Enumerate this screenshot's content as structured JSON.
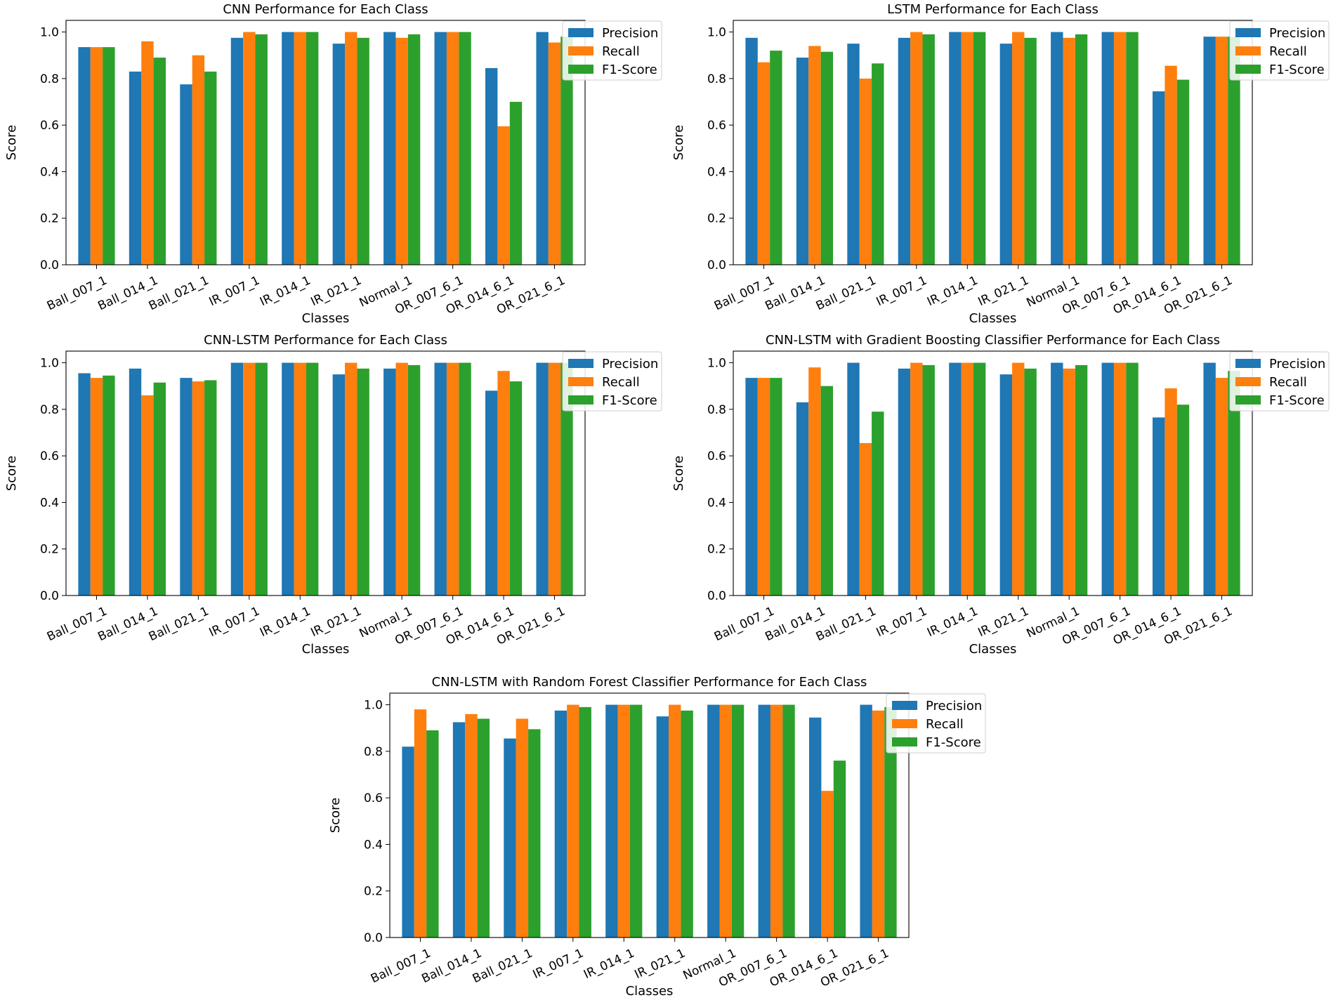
{
  "chart_data": [
    {
      "type": "bar",
      "title": "CNN Performance for Each Class",
      "xlabel": "Classes",
      "ylabel": "Score",
      "ylim": [
        0,
        1.05
      ],
      "yticks": [
        "0.0",
        "0.2",
        "0.4",
        "0.6",
        "0.8",
        "1.0"
      ],
      "legend_position": "top-right",
      "categories": [
        "Ball_007_1",
        "Ball_014_1",
        "Ball_021_1",
        "IR_007_1",
        "IR_014_1",
        "IR_021_1",
        "Normal_1",
        "OR_007_6_1",
        "OR_014_6_1",
        "OR_021_6_1"
      ],
      "series": [
        {
          "name": "Precision",
          "color": "#1f77b4",
          "values": [
            0.935,
            0.83,
            0.775,
            0.975,
            1.0,
            0.95,
            1.0,
            1.0,
            0.845,
            1.0
          ]
        },
        {
          "name": "Recall",
          "color": "#ff7f0e",
          "values": [
            0.935,
            0.96,
            0.9,
            1.0,
            1.0,
            1.0,
            0.975,
            1.0,
            0.595,
            0.955
          ]
        },
        {
          "name": "F1-Score",
          "color": "#2ca02c",
          "values": [
            0.935,
            0.89,
            0.83,
            0.99,
            1.0,
            0.975,
            0.99,
            1.0,
            0.7,
            0.98
          ]
        }
      ]
    },
    {
      "type": "bar",
      "title": "LSTM Performance for Each Class",
      "xlabel": "Classes",
      "ylabel": "Score",
      "ylim": [
        0,
        1.05
      ],
      "yticks": [
        "0.0",
        "0.2",
        "0.4",
        "0.6",
        "0.8",
        "1.0"
      ],
      "legend_position": "top-right",
      "categories": [
        "Ball_007_1",
        "Ball_014_1",
        "Ball_021_1",
        "IR_007_1",
        "IR_014_1",
        "IR_021_1",
        "Normal_1",
        "OR_007_6_1",
        "OR_014_6_1",
        "OR_021_6_1"
      ],
      "series": [
        {
          "name": "Precision",
          "color": "#1f77b4",
          "values": [
            0.975,
            0.89,
            0.95,
            0.975,
            1.0,
            0.95,
            1.0,
            1.0,
            0.745,
            0.98
          ]
        },
        {
          "name": "Recall",
          "color": "#ff7f0e",
          "values": [
            0.87,
            0.94,
            0.8,
            1.0,
            1.0,
            1.0,
            0.975,
            1.0,
            0.855,
            0.98
          ]
        },
        {
          "name": "F1-Score",
          "color": "#2ca02c",
          "values": [
            0.92,
            0.915,
            0.865,
            0.99,
            1.0,
            0.975,
            0.99,
            1.0,
            0.795,
            0.98
          ]
        }
      ]
    },
    {
      "type": "bar",
      "title": "CNN-LSTM Performance for Each Class",
      "xlabel": "Classes",
      "ylabel": "Score",
      "ylim": [
        0,
        1.05
      ],
      "yticks": [
        "0.0",
        "0.2",
        "0.4",
        "0.6",
        "0.8",
        "1.0"
      ],
      "legend_position": "top-right",
      "categories": [
        "Ball_007_1",
        "Ball_014_1",
        "Ball_021_1",
        "IR_007_1",
        "IR_014_1",
        "IR_021_1",
        "Normal_1",
        "OR_007_6_1",
        "OR_014_6_1",
        "OR_021_6_1"
      ],
      "series": [
        {
          "name": "Precision",
          "color": "#1f77b4",
          "values": [
            0.955,
            0.975,
            0.935,
            1.0,
            1.0,
            0.95,
            0.975,
            1.0,
            0.88,
            1.0
          ]
        },
        {
          "name": "Recall",
          "color": "#ff7f0e",
          "values": [
            0.935,
            0.86,
            0.92,
            1.0,
            1.0,
            1.0,
            1.0,
            1.0,
            0.965,
            1.0
          ]
        },
        {
          "name": "F1-Score",
          "color": "#2ca02c",
          "values": [
            0.945,
            0.915,
            0.925,
            1.0,
            1.0,
            0.975,
            0.99,
            1.0,
            0.92,
            1.0
          ]
        }
      ]
    },
    {
      "type": "bar",
      "title": "CNN-LSTM with Gradient Boosting Classifier Performance for Each Class",
      "xlabel": "Classes",
      "ylabel": "Score",
      "ylim": [
        0,
        1.05
      ],
      "yticks": [
        "0.0",
        "0.2",
        "0.4",
        "0.6",
        "0.8",
        "1.0"
      ],
      "legend_position": "top-right",
      "categories": [
        "Ball_007_1",
        "Ball_014_1",
        "Ball_021_1",
        "IR_007_1",
        "IR_014_1",
        "IR_021_1",
        "Normal_1",
        "OR_007_6_1",
        "OR_014_6_1",
        "OR_021_6_1"
      ],
      "series": [
        {
          "name": "Precision",
          "color": "#1f77b4",
          "values": [
            0.935,
            0.83,
            1.0,
            0.975,
            1.0,
            0.95,
            1.0,
            1.0,
            0.765,
            1.0
          ]
        },
        {
          "name": "Recall",
          "color": "#ff7f0e",
          "values": [
            0.935,
            0.98,
            0.655,
            1.0,
            1.0,
            1.0,
            0.975,
            1.0,
            0.89,
            0.935
          ]
        },
        {
          "name": "F1-Score",
          "color": "#2ca02c",
          "values": [
            0.935,
            0.9,
            0.79,
            0.99,
            1.0,
            0.975,
            0.99,
            1.0,
            0.82,
            0.965
          ]
        }
      ]
    },
    {
      "type": "bar",
      "title": "CNN-LSTM with Random Forest Classifier Performance for Each Class",
      "xlabel": "Classes",
      "ylabel": "Score",
      "ylim": [
        0,
        1.05
      ],
      "yticks": [
        "0.0",
        "0.2",
        "0.4",
        "0.6",
        "0.8",
        "1.0"
      ],
      "legend_position": "top-right",
      "categories": [
        "Ball_007_1",
        "Ball_014_1",
        "Ball_021_1",
        "IR_007_1",
        "IR_014_1",
        "IR_021_1",
        "Normal_1",
        "OR_007_6_1",
        "OR_014_6_1",
        "OR_021_6_1"
      ],
      "series": [
        {
          "name": "Precision",
          "color": "#1f77b4",
          "values": [
            0.82,
            0.925,
            0.855,
            0.975,
            1.0,
            0.95,
            1.0,
            1.0,
            0.945,
            1.0
          ]
        },
        {
          "name": "Recall",
          "color": "#ff7f0e",
          "values": [
            0.98,
            0.96,
            0.94,
            1.0,
            1.0,
            1.0,
            1.0,
            1.0,
            0.63,
            0.975
          ]
        },
        {
          "name": "F1-Score",
          "color": "#2ca02c",
          "values": [
            0.89,
            0.94,
            0.895,
            0.99,
            1.0,
            0.975,
            1.0,
            1.0,
            0.76,
            0.99
          ]
        }
      ]
    }
  ]
}
